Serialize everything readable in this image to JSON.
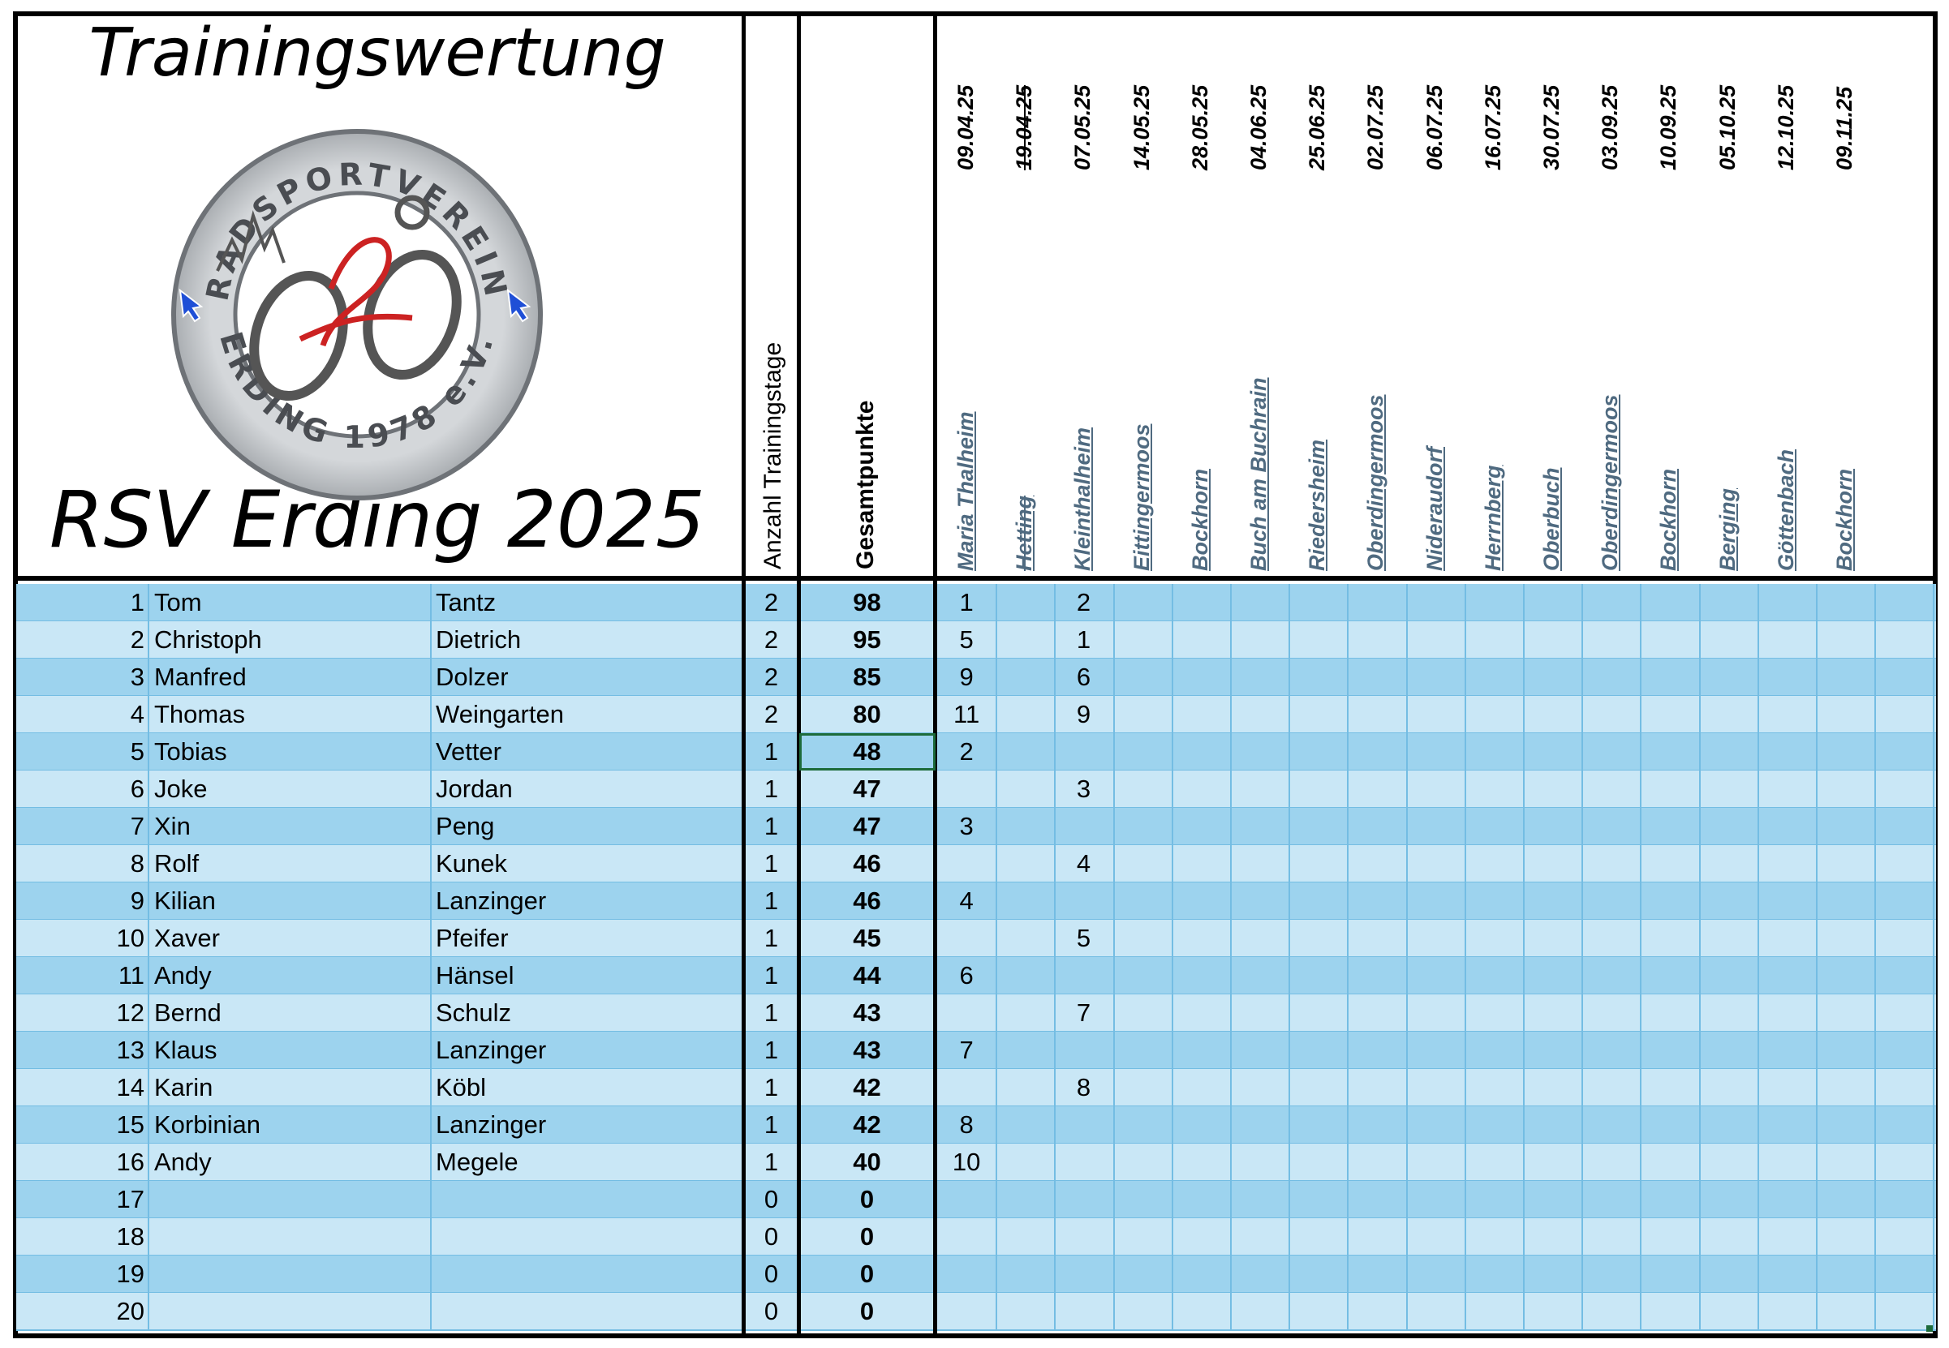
{
  "title_top": "Trainingswertung",
  "title_bottom": "RSV Erding 2025",
  "logo": {
    "ring_text_top": "RADSPORTVEREIN",
    "ring_text_bottom": "ERDING 1978 e.V."
  },
  "headers": {
    "training_days": "Anzahl Trainingstage",
    "total_points": "Gesamtpunkte"
  },
  "events": [
    {
      "date": "09.04.25",
      "location": "Maria Thalheim",
      "cancelled": false
    },
    {
      "date": "19.04.25",
      "location": "Hetting",
      "cancelled": true
    },
    {
      "date": "07.05.25",
      "location": "Kleinthalheim",
      "cancelled": false
    },
    {
      "date": "14.05.25",
      "location": "Eittingermoos",
      "cancelled": false
    },
    {
      "date": "28.05.25",
      "location": "Bockhorn",
      "cancelled": false
    },
    {
      "date": "04.06.25",
      "location": "Buch am Buchrain",
      "cancelled": false
    },
    {
      "date": "25.06.25",
      "location": "Riedersheim",
      "cancelled": false
    },
    {
      "date": "02.07.25",
      "location": "Oberdingermoos",
      "cancelled": false
    },
    {
      "date": "06.07.25",
      "location": "Nideraudorf",
      "cancelled": false
    },
    {
      "date": "16.07.25",
      "location": "Herrnberg",
      "cancelled": false
    },
    {
      "date": "30.07.25",
      "location": "Oberbuch",
      "cancelled": false
    },
    {
      "date": "03.09.25",
      "location": "Oberdingermoos",
      "cancelled": false
    },
    {
      "date": "10.09.25",
      "location": "Bockhorn",
      "cancelled": false
    },
    {
      "date": "05.10.25",
      "location": "Berging",
      "cancelled": false
    },
    {
      "date": "12.10.25",
      "location": "Göttenbach",
      "cancelled": false
    },
    {
      "date": "09.11.25",
      "location": "Bockhorn",
      "cancelled": false
    }
  ],
  "rows": [
    {
      "rank": "1",
      "first": "Tom",
      "last": "Tantz",
      "days": "2",
      "points": "98",
      "results": [
        "1",
        "",
        "2"
      ]
    },
    {
      "rank": "2",
      "first": "Christoph",
      "last": "Dietrich",
      "days": "2",
      "points": "95",
      "results": [
        "5",
        "",
        "1"
      ]
    },
    {
      "rank": "3",
      "first": "Manfred",
      "last": "Dolzer",
      "days": "2",
      "points": "85",
      "results": [
        "9",
        "",
        "6"
      ]
    },
    {
      "rank": "4",
      "first": "Thomas",
      "last": "Weingarten",
      "days": "2",
      "points": "80",
      "results": [
        "11",
        "",
        "9"
      ]
    },
    {
      "rank": "5",
      "first": "Tobias",
      "last": "Vetter",
      "days": "1",
      "points": "48",
      "results": [
        "2",
        "",
        ""
      ]
    },
    {
      "rank": "6",
      "first": "Joke",
      "last": "Jordan",
      "days": "1",
      "points": "47",
      "results": [
        "",
        "",
        "3"
      ]
    },
    {
      "rank": "7",
      "first": "Xin",
      "last": "Peng",
      "days": "1",
      "points": "47",
      "results": [
        "3",
        "",
        ""
      ]
    },
    {
      "rank": "8",
      "first": "Rolf",
      "last": "Kunek",
      "days": "1",
      "points": "46",
      "results": [
        "",
        "",
        "4"
      ]
    },
    {
      "rank": "9",
      "first": "Kilian",
      "last": "Lanzinger",
      "days": "1",
      "points": "46",
      "results": [
        "4",
        "",
        ""
      ]
    },
    {
      "rank": "10",
      "first": "Xaver",
      "last": "Pfeifer",
      "days": "1",
      "points": "45",
      "results": [
        "",
        "",
        "5"
      ]
    },
    {
      "rank": "11",
      "first": "Andy",
      "last": "Hänsel",
      "days": "1",
      "points": "44",
      "results": [
        "6",
        "",
        ""
      ]
    },
    {
      "rank": "12",
      "first": "Bernd",
      "last": "Schulz",
      "days": "1",
      "points": "43",
      "results": [
        "",
        "",
        "7"
      ]
    },
    {
      "rank": "13",
      "first": "Klaus",
      "last": "Lanzinger",
      "days": "1",
      "points": "43",
      "results": [
        "7",
        "",
        ""
      ]
    },
    {
      "rank": "14",
      "first": "Karin",
      "last": "Köbl",
      "days": "1",
      "points": "42",
      "results": [
        "",
        "",
        "8"
      ]
    },
    {
      "rank": "15",
      "first": "Korbinian",
      "last": "Lanzinger",
      "days": "1",
      "points": "42",
      "results": [
        "8",
        "",
        ""
      ]
    },
    {
      "rank": "16",
      "first": "Andy",
      "last": "Megele",
      "days": "1",
      "points": "40",
      "results": [
        "10",
        "",
        ""
      ]
    },
    {
      "rank": "17",
      "first": "",
      "last": "",
      "days": "0",
      "points": "0",
      "results": [
        "",
        "",
        ""
      ]
    },
    {
      "rank": "18",
      "first": "",
      "last": "",
      "days": "0",
      "points": "0",
      "results": [
        "",
        "",
        ""
      ]
    },
    {
      "rank": "19",
      "first": "",
      "last": "",
      "days": "0",
      "points": "0",
      "results": [
        "",
        "",
        ""
      ]
    },
    {
      "rank": "20",
      "first": "",
      "last": "",
      "days": "0",
      "points": "0",
      "results": [
        "",
        "",
        ""
      ]
    }
  ],
  "selected_row": 4,
  "colors": {
    "row_dark": "#9dd3ee",
    "row_light": "#c9e7f6",
    "grid": "#74bde3",
    "location_text": "#4f6a80",
    "logo_ring": "#c6c9cc",
    "logo_red": "#cc2222",
    "logo_arrow": "#1f4fd6"
  }
}
